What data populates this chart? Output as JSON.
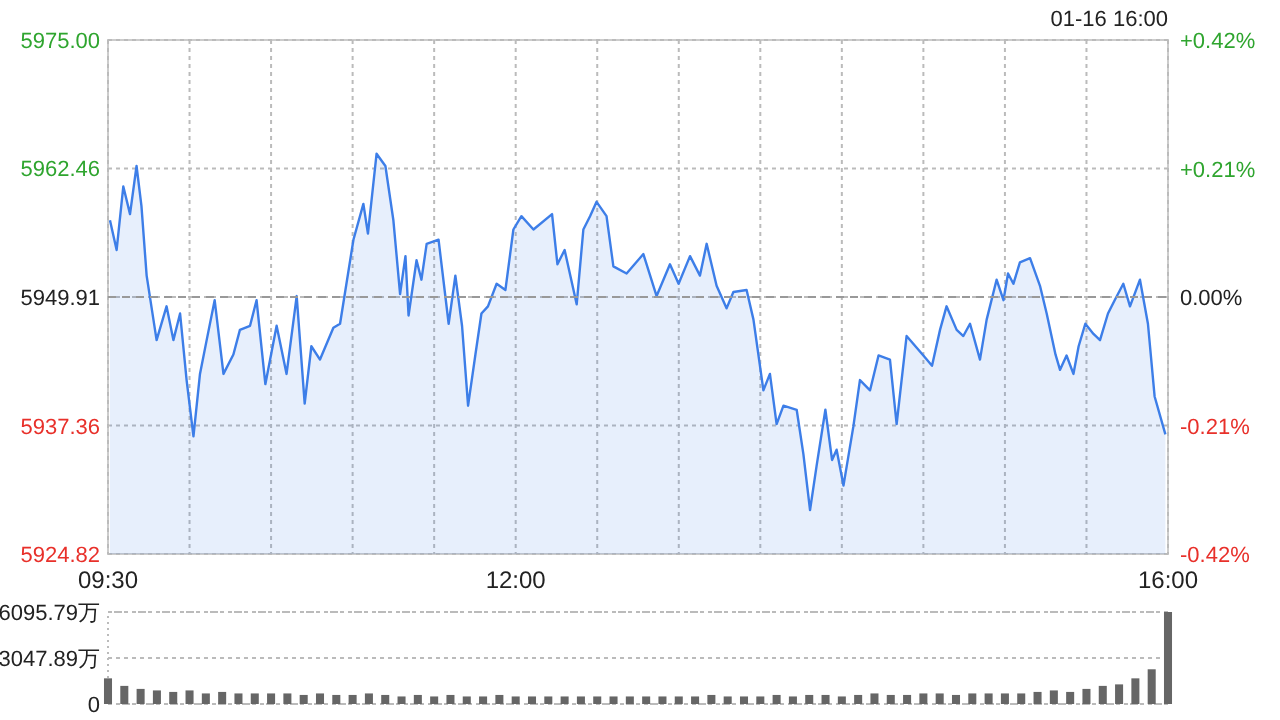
{
  "chart_data": [
    {
      "type": "area",
      "subtitle": "01-16 16:00",
      "color": "#3d7ee8",
      "x": [
        9.512,
        9.553,
        9.594,
        9.635,
        9.675,
        9.705,
        9.737,
        9.798,
        9.859,
        9.901,
        9.942,
        9.982,
        10.024,
        10.064,
        10.105,
        10.154,
        10.208,
        10.269,
        10.309,
        10.371,
        10.411,
        10.465,
        10.534,
        10.595,
        10.657,
        10.706,
        10.747,
        10.8,
        10.882,
        10.923,
        11.005,
        11.066,
        11.094,
        11.147,
        11.201,
        11.25,
        11.291,
        11.324,
        11.343,
        11.392,
        11.422,
        11.454,
        11.527,
        11.589,
        11.63,
        11.671,
        11.708,
        11.753,
        11.79,
        11.83,
        11.883,
        11.937,
        11.986,
        12.035,
        12.109,
        12.223,
        12.256,
        12.3,
        12.374,
        12.415,
        12.456,
        12.496,
        12.557,
        12.599,
        12.68,
        12.783,
        12.864,
        12.946,
        12.999,
        13.069,
        13.13,
        13.171,
        13.232,
        13.293,
        13.335,
        13.416,
        13.458,
        13.519,
        13.559,
        13.6,
        13.642,
        13.723,
        13.764,
        13.805,
        13.845,
        13.899,
        13.94,
        13.968,
        14.01,
        14.071,
        14.111,
        14.173,
        14.225,
        14.295,
        14.336,
        14.397,
        14.5,
        14.553,
        14.602,
        14.642,
        14.704,
        14.745,
        14.786,
        14.847,
        14.888,
        14.949,
        14.991,
        15.019,
        15.052,
        15.092,
        15.154,
        15.215,
        15.256,
        15.31,
        15.338,
        15.378,
        15.42,
        15.452,
        15.493,
        15.543,
        15.583,
        15.632,
        15.673,
        15.726,
        15.767,
        15.828,
        15.877,
        15.918,
        15.984
      ],
      "values": [
        5957.4,
        5954.5,
        5960.7,
        5958.0,
        5962.7,
        5958.8,
        5952.0,
        5945.7,
        5949.0,
        5945.7,
        5948.3,
        5941.8,
        5936.3,
        5942.4,
        5945.7,
        5949.6,
        5942.4,
        5944.3,
        5946.7,
        5947.1,
        5949.6,
        5941.4,
        5947.1,
        5942.4,
        5950.0,
        5939.5,
        5945.1,
        5943.8,
        5946.9,
        5947.3,
        5955.5,
        5959.0,
        5956.1,
        5963.9,
        5962.7,
        5957.4,
        5950.2,
        5953.9,
        5948.1,
        5953.5,
        5951.6,
        5955.1,
        5955.5,
        5947.3,
        5952.0,
        5947.1,
        5939.3,
        5944.3,
        5948.3,
        5949.0,
        5951.2,
        5950.6,
        5956.5,
        5957.8,
        5956.5,
        5958.0,
        5953.1,
        5954.5,
        5949.2,
        5956.5,
        5957.8,
        5959.2,
        5957.8,
        5952.9,
        5952.2,
        5954.1,
        5950.0,
        5953.1,
        5951.2,
        5953.9,
        5952.0,
        5955.1,
        5951.0,
        5948.8,
        5950.4,
        5950.6,
        5947.7,
        5940.8,
        5942.4,
        5937.5,
        5939.3,
        5938.9,
        5934.6,
        5929.1,
        5933.4,
        5938.9,
        5934.0,
        5935.0,
        5931.5,
        5937.3,
        5941.8,
        5940.8,
        5944.2,
        5943.8,
        5937.5,
        5946.1,
        5944.2,
        5943.2,
        5946.7,
        5949.0,
        5946.7,
        5946.1,
        5947.3,
        5943.8,
        5947.7,
        5951.6,
        5949.6,
        5952.2,
        5951.2,
        5953.3,
        5953.7,
        5951.0,
        5948.3,
        5944.3,
        5942.8,
        5944.2,
        5942.4,
        5945.1,
        5947.3,
        5946.3,
        5945.7,
        5948.3,
        5949.6,
        5951.2,
        5949.0,
        5951.6,
        5947.3,
        5940.2,
        5936.5
      ],
      "xlim": [
        9.5,
        16
      ],
      "ylim": [
        5924.82,
        5975
      ],
      "xticks": [
        {
          "value": 9.5,
          "label": "09:30"
        },
        {
          "value": 10,
          "label": null
        },
        {
          "value": 10.5,
          "label": null
        },
        {
          "value": 11,
          "label": null
        },
        {
          "value": 11.5,
          "label": null
        },
        {
          "value": 12,
          "label": "12:00"
        },
        {
          "value": 12.5,
          "label": null
        },
        {
          "value": 13,
          "label": null
        },
        {
          "value": 13.5,
          "label": null
        },
        {
          "value": 14,
          "label": null
        },
        {
          "value": 14.5,
          "label": null
        },
        {
          "value": 15,
          "label": null
        },
        {
          "value": 15.5,
          "label": null
        },
        {
          "value": 16,
          "label": "16:00"
        }
      ],
      "yticks": [
        5924.82,
        5937.36,
        5949.91,
        5962.46,
        {
          "value": 5975,
          "label": "5975.00"
        }
      ],
      "y2lim": [
        -0.42,
        0.42
      ],
      "y2ticks": [
        {
          "value": -0.42,
          "label": "-0.42%"
        },
        {
          "value": -0.21,
          "label": "-0.21%"
        },
        {
          "value": 0,
          "label": "0.00%"
        },
        {
          "value": 0.21,
          "label": "+0.21%"
        },
        {
          "value": 0.42,
          "label": "+0.42%"
        }
      ],
      "ref_lines": [
        {
          "axis": "y",
          "value": 5949.91,
          "line_style": "dashed"
        }
      ],
      "grid": true
    },
    {
      "type": "bar",
      "color": "#666666",
      "x": [
        9.5,
        9.6,
        9.7,
        9.8,
        9.9,
        10.0,
        10.1,
        10.2,
        10.3,
        10.4,
        10.5,
        10.6,
        10.7,
        10.8,
        10.9,
        11.0,
        11.1,
        11.2,
        11.3,
        11.4,
        11.5,
        11.6,
        11.7,
        11.8,
        11.9,
        12.0,
        12.1,
        12.2,
        12.3,
        12.4,
        12.5,
        12.6,
        12.7,
        12.8,
        12.9,
        13.0,
        13.1,
        13.2,
        13.3,
        13.4,
        13.5,
        13.6,
        13.7,
        13.8,
        13.9,
        14.0,
        14.1,
        14.2,
        14.3,
        14.4,
        14.5,
        14.6,
        14.7,
        14.8,
        14.9,
        15.0,
        15.1,
        15.2,
        15.3,
        15.4,
        15.5,
        15.6,
        15.7,
        15.8,
        15.9,
        16.0
      ],
      "values": [
        1700,
        1200,
        1000,
        900,
        800,
        900,
        700,
        800,
        700,
        700,
        700,
        700,
        600,
        700,
        600,
        600,
        700,
        600,
        500,
        600,
        500,
        600,
        500,
        500,
        600,
        500,
        500,
        500,
        500,
        500,
        500,
        500,
        500,
        500,
        500,
        500,
        500,
        600,
        500,
        500,
        500,
        600,
        500,
        600,
        600,
        500,
        600,
        700,
        600,
        600,
        700,
        700,
        600,
        700,
        700,
        700,
        700,
        800,
        900,
        800,
        1000,
        1200,
        1300,
        1700,
        2300,
        6095.79
      ],
      "xlim": [
        9.5,
        16
      ],
      "ylim": [
        0,
        6095.79
      ],
      "yticks": [
        0,
        {
          "value": 3047.89,
          "label": "3047.89万"
        },
        {
          "value": 6095.79,
          "label": "6095.79万"
        }
      ],
      "grid": "y",
      "tick_labels": "y"
    }
  ]
}
